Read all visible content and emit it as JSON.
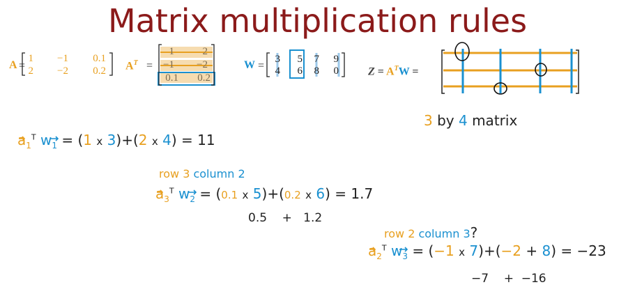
{
  "title": "Matrix multiplication rules",
  "matrix_A": {
    "name": "A",
    "rows": [
      [
        "1",
        "−1",
        "0.1"
      ],
      [
        "2",
        "−2",
        "0.2"
      ]
    ]
  },
  "matrix_AT": {
    "name": "A",
    "superscript": "T",
    "rows": [
      [
        "1",
        "2"
      ],
      [
        "−1",
        "−2"
      ],
      [
        "0.1",
        "0.2"
      ]
    ]
  },
  "matrix_W": {
    "name": "W",
    "rows": [
      [
        "3",
        "5",
        "7",
        "9"
      ],
      [
        "4",
        "6",
        "8",
        "0"
      ]
    ]
  },
  "matrix_Z": {
    "lhs": "Z",
    "rhs_a": "A",
    "rhs_sup": "T",
    "rhs_w": "W"
  },
  "size_note": {
    "rows": "3",
    "by": "by",
    "cols": "4",
    "word": "matrix"
  },
  "equals": "=",
  "eq1": {
    "a": "a",
    "a_sub": "1",
    "t": "T",
    "w": "w",
    "w_sub": "1",
    "p1a": "1",
    "x": "x",
    "p1b": "3",
    "plus": "+",
    "p2a": "2",
    "p2b": "4",
    "result": "11"
  },
  "eq2": {
    "label_row": "row 3",
    "label_col": "column 2",
    "a": "a",
    "a_sub": "3",
    "t": "T",
    "w": "w",
    "w_sub": "2",
    "p1a": "0.1",
    "x": "x",
    "p1b": "5",
    "plus": "+",
    "p2a": "0.2",
    "p2b": "6",
    "result": "1.7",
    "partial_a": "0.5",
    "partial_plus": "+",
    "partial_b": "1.2"
  },
  "eq3": {
    "label_row": "row 2",
    "label_col": "column 3",
    "question": "?",
    "a": "a",
    "a_sub": "2",
    "t": "T",
    "w": "w",
    "w_sub": "3",
    "p1a": "−1",
    "x": "x",
    "p1b": "7",
    "plus": "+",
    "p2a": "−2",
    "p2b": "8",
    "result": "−23",
    "partial_a": "−7",
    "partial_plus": "+",
    "partial_b": "−16"
  },
  "colors": {
    "title": "#8b1a1a",
    "orange": "#e8a020",
    "blue": "#1a90d0",
    "ink": "#222222"
  }
}
